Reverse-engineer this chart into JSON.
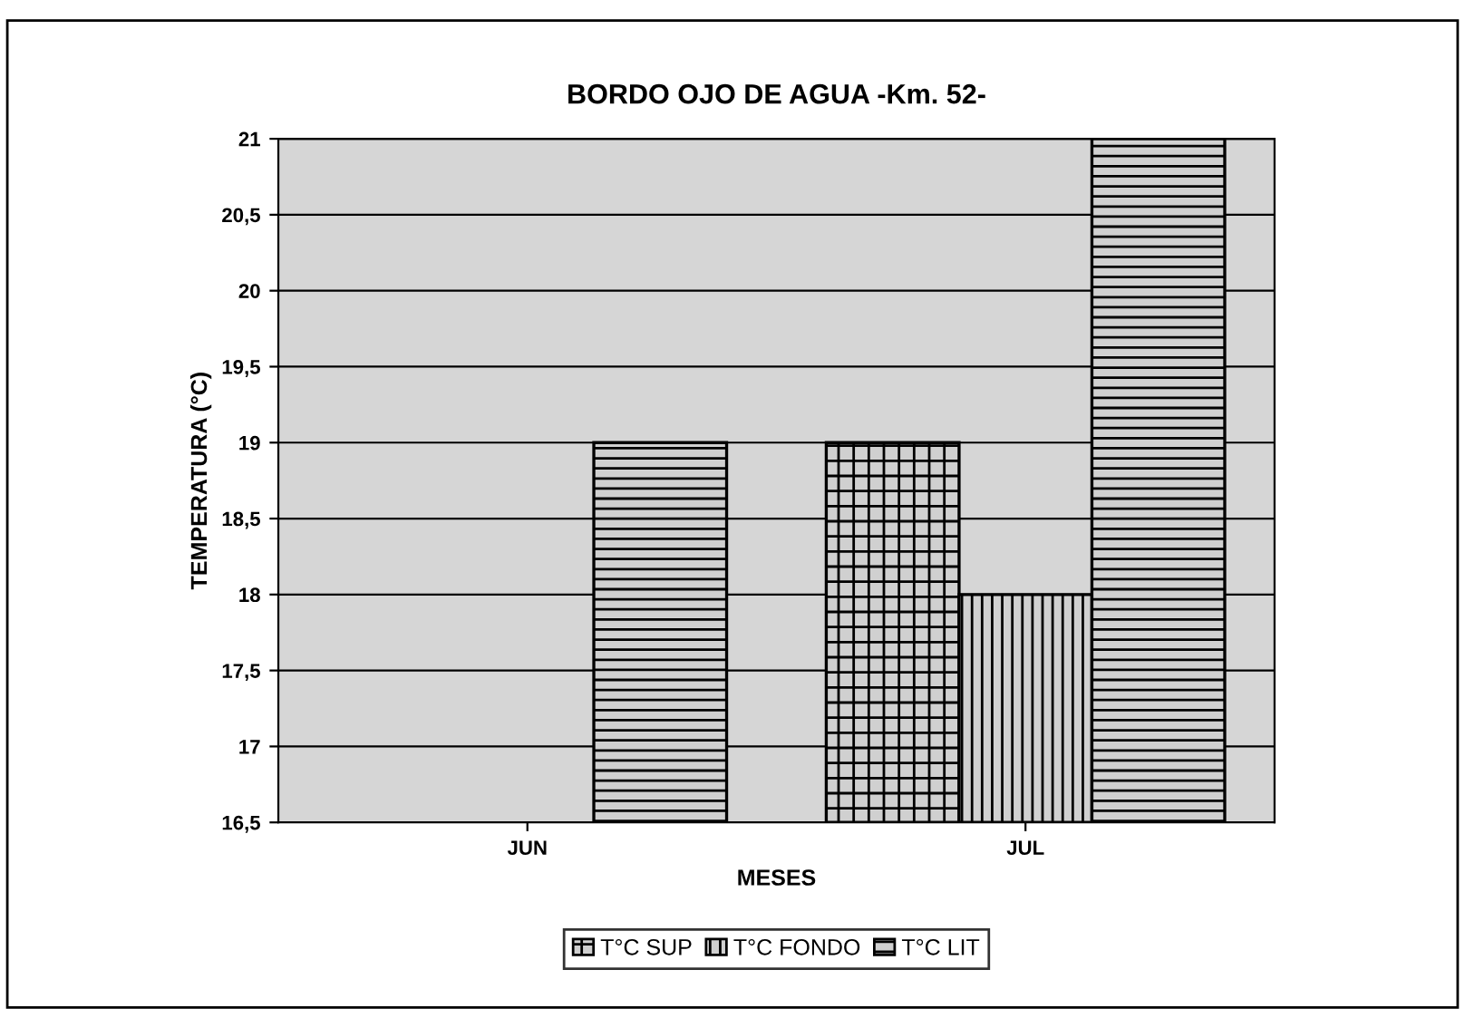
{
  "chart_data": {
    "type": "bar",
    "title": "BORDO OJO DE AGUA -Km. 52-",
    "xlabel": "MESES",
    "ylabel": "TEMPERATURA (°C)",
    "categories": [
      "JUN",
      "JUL"
    ],
    "series": [
      {
        "name": "T°C SUP",
        "color": "#000000",
        "values": [
          null,
          19
        ]
      },
      {
        "name": "T°C FONDO",
        "color": "#000000",
        "values": [
          null,
          18
        ]
      },
      {
        "name": "T°C LIT",
        "color": "#000000",
        "values": [
          19,
          21
        ]
      }
    ],
    "ylim": [
      16.5,
      21
    ],
    "yticks": [
      {
        "value": 16.5,
        "label": "16,5"
      },
      17,
      {
        "value": 17.5,
        "label": "17,5"
      },
      18,
      {
        "value": 18.5,
        "label": "18,5"
      },
      19,
      {
        "value": 19.5,
        "label": "19,5"
      },
      20,
      {
        "value": 20.5,
        "label": "20,5"
      },
      21
    ],
    "grid": "y",
    "legend": "bottom"
  }
}
